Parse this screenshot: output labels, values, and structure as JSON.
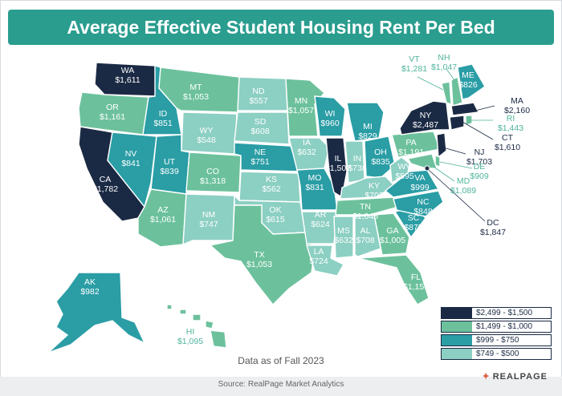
{
  "title": "Average Effective Student Housing Rent Per Bed",
  "as_of": "Data as of Fall 2023",
  "source": "Source: RealPage Market Analytics",
  "brand": "REALPAGE",
  "colors": {
    "banner": "#2a9d8f",
    "tier1": "#1b2a44",
    "tier2": "#6cc19c",
    "tier3": "#2a9da5",
    "tier4": "#8ccfc3"
  },
  "legend": [
    {
      "label": "$2,499 - $1,500",
      "color": "#1b2a44"
    },
    {
      "label": "$1,499 - $1,000",
      "color": "#6cc19c"
    },
    {
      "label": "$999 - $750",
      "color": "#2a9da5"
    },
    {
      "label": "$749 - $500",
      "color": "#8ccfc3"
    }
  ],
  "states": {
    "WA": "$1,611",
    "OR": "$1,161",
    "CA": "$1,782",
    "ID": "$851",
    "NV": "$841",
    "MT": "$1,053",
    "WY": "$548",
    "UT": "$839",
    "AZ": "$1,061",
    "CO": "$1,318",
    "NM": "$747",
    "ND": "$557",
    "SD": "$608",
    "NE": "$751",
    "KS": "$562",
    "OK": "$615",
    "TX": "$1,053",
    "MN": "$1,057",
    "IA": "$632",
    "MO": "$831",
    "AR": "$624",
    "LA": "$724",
    "WI": "$960",
    "IL": "$1,507",
    "MI": "$829",
    "IN": "$738",
    "OH": "$835",
    "KY": "$707",
    "TN": "$1,048",
    "MS": "$632",
    "AL": "$708",
    "GA": "$1,005",
    "FL": "$1,150",
    "SC": "$875",
    "NC": "$848",
    "VA": "$999",
    "WV": "$595",
    "PA": "$1,191",
    "NY": "$2,487",
    "VT": "$1,281",
    "NH": "$1,047",
    "ME": "$826",
    "MA": "$2,160",
    "RI": "$1,443",
    "CT": "$1,610",
    "NJ": "$1,703",
    "DE": "$909",
    "MD": "$1,089",
    "DC": "$1,847",
    "AK": "$982",
    "HI": "$1,095"
  }
}
